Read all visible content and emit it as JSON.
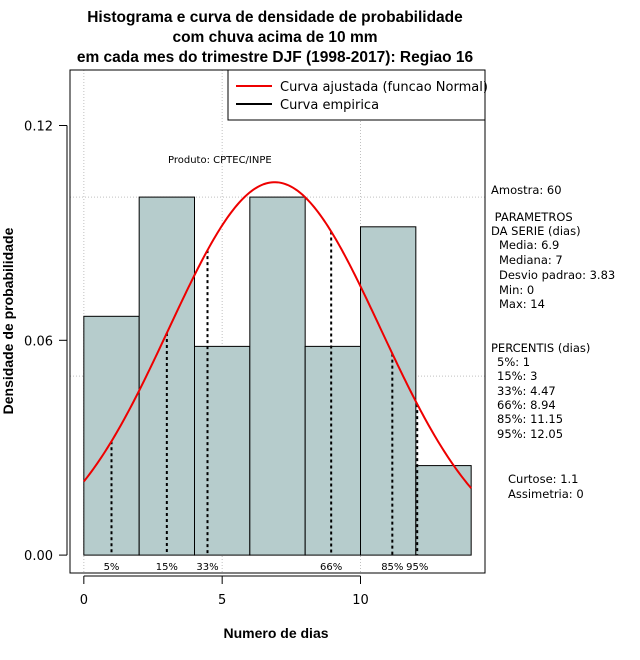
{
  "chart_data": {
    "type": "bar",
    "title_lines": [
      "Histograma e curva de densidade de probabilidade",
      "com chuva acima de 10 mm",
      "em cada mes do trimestre DJF (1998-2017): Regiao 16"
    ],
    "xlabel": "Numero de dias",
    "ylabel": "Densidade de probabilidade",
    "xlim": [
      -0.5,
      14.5
    ],
    "ylim": [
      -0.005,
      0.1355
    ],
    "x_ticks": [
      0,
      5,
      10
    ],
    "y_ticks": [
      0.0,
      0.06,
      0.12
    ],
    "y_tick_labels": [
      "0.00",
      "0.06",
      "0.12"
    ],
    "grid_x": [
      0,
      5,
      10
    ],
    "grid_y": [
      0.05,
      0.1
    ],
    "bins": [
      {
        "x0": 0,
        "x1": 2,
        "density": 0.0667
      },
      {
        "x0": 2,
        "x1": 4,
        "density": 0.1
      },
      {
        "x0": 4,
        "x1": 6,
        "density": 0.0583
      },
      {
        "x0": 6,
        "x1": 8,
        "density": 0.1
      },
      {
        "x0": 8,
        "x1": 10,
        "density": 0.0583
      },
      {
        "x0": 10,
        "x1": 12,
        "density": 0.0917
      },
      {
        "x0": 12,
        "x1": 14,
        "density": 0.025
      }
    ],
    "bar_color": "#b6cccc",
    "normal_fit": {
      "mean": 6.9,
      "sd": 3.83,
      "color": "#ee0000"
    },
    "percentiles": [
      {
        "label": "5%",
        "x": 1
      },
      {
        "label": "15%",
        "x": 3
      },
      {
        "label": "33%",
        "x": 4.47
      },
      {
        "label": "66%",
        "x": 8.94
      },
      {
        "label": "85%",
        "x": 11.15
      },
      {
        "label": "95%",
        "x": 12.05
      }
    ],
    "legend": {
      "position": "top-right",
      "entries": [
        {
          "name": "Curva ajustada (funcao Normal)",
          "color": "#ee0000"
        },
        {
          "name": "Curva empirica",
          "color": "#000000"
        }
      ]
    },
    "annotation": "Produto: CPTEC/INPE"
  },
  "side_panel": {
    "sample": "Amostra: 60",
    "params_title": [
      " PARAMETROS",
      "DA SERIE (dias)"
    ],
    "params": [
      "Media: 6.9",
      "Mediana: 7",
      "Desvio padrao: 3.83",
      "Min: 0",
      "Max: 14"
    ],
    "perc_title": "PERCENTIS (dias)",
    "percs": [
      "5%: 1",
      "15%: 3",
      "33%: 4.47",
      "66%: 8.94",
      "85%: 11.15",
      "95%: 12.05"
    ],
    "shape": [
      "Curtose: 1.1",
      "Assimetria: 0"
    ]
  }
}
